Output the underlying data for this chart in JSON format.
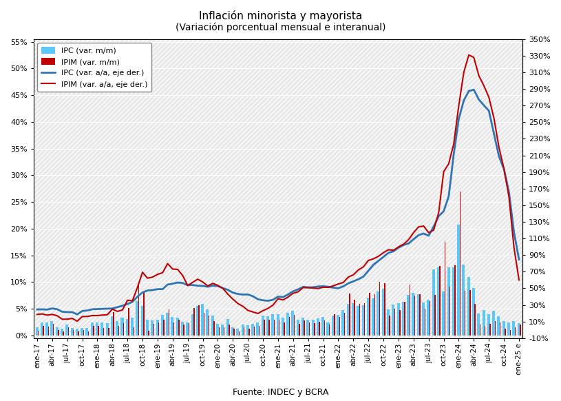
{
  "title": "Inflación minorista y mayorista",
  "subtitle": "(Variación porcentual mensual e interanual)",
  "source": "Fuente: INDEC y BCRA",
  "legend_labels": [
    "IPC (var. m/m)",
    "IPIM (var. m/m)",
    "IPC (var. a/a, eje der.)",
    "IPIM (var. a/a, eje der.)"
  ],
  "bar_color_ipc": "#5BC8F5",
  "bar_color_ipim": "#C00000",
  "line_color_ipc": "#2E75B6",
  "line_color_ipim": "#C00000",
  "months": [
    "ene-17",
    "feb-17",
    "mar-17",
    "abr-17",
    "may-17",
    "jun-17",
    "jul-17",
    "ago-17",
    "sep-17",
    "oct-17",
    "nov-17",
    "dic-17",
    "ene-18",
    "feb-18",
    "mar-18",
    "abr-18",
    "may-18",
    "jun-18",
    "jul-18",
    "ago-18",
    "sep-18",
    "oct-18",
    "nov-18",
    "dic-18",
    "ene-19",
    "feb-19",
    "mar-19",
    "abr-19",
    "may-19",
    "jun-19",
    "jul-19",
    "ago-19",
    "sep-19",
    "oct-19",
    "nov-19",
    "dic-19",
    "ene-20",
    "feb-20",
    "mar-20",
    "abr-20",
    "may-20",
    "jun-20",
    "jul-20",
    "ago-20",
    "sep-20",
    "oct-20",
    "nov-20",
    "dic-20",
    "ene-21",
    "feb-21",
    "mar-21",
    "abr-21",
    "may-21",
    "jun-21",
    "jul-21",
    "ago-21",
    "sep-21",
    "oct-21",
    "nov-21",
    "dic-21",
    "ene-22",
    "feb-22",
    "mar-22",
    "abr-22",
    "may-22",
    "jun-22",
    "jul-22",
    "ago-22",
    "sep-22",
    "oct-22",
    "nov-22",
    "dic-22",
    "ene-23",
    "feb-23",
    "mar-23",
    "abr-23",
    "may-23",
    "jun-23",
    "jul-23",
    "ago-23",
    "sep-23",
    "oct-23",
    "nov-23",
    "dic-23",
    "ene-24",
    "feb-24",
    "mar-24",
    "abr-24",
    "may-24",
    "jun-24",
    "jul-24",
    "ago-24",
    "sep-24",
    "oct-24",
    "nov-24",
    "dic-24",
    "ene-25 e"
  ],
  "ipc_mm": [
    0.016,
    0.024,
    0.024,
    0.027,
    0.015,
    0.013,
    0.021,
    0.014,
    0.013,
    0.014,
    0.014,
    0.024,
    0.025,
    0.025,
    0.023,
    0.036,
    0.027,
    0.033,
    0.031,
    0.034,
    0.064,
    0.055,
    0.03,
    0.028,
    0.029,
    0.038,
    0.043,
    0.035,
    0.034,
    0.026,
    0.025,
    0.04,
    0.056,
    0.059,
    0.049,
    0.037,
    0.022,
    0.02,
    0.031,
    0.015,
    0.013,
    0.021,
    0.019,
    0.022,
    0.024,
    0.037,
    0.036,
    0.04,
    0.04,
    0.034,
    0.042,
    0.046,
    0.03,
    0.033,
    0.03,
    0.03,
    0.032,
    0.035,
    0.025,
    0.037,
    0.039,
    0.048,
    0.059,
    0.061,
    0.056,
    0.057,
    0.071,
    0.07,
    0.083,
    0.088,
    0.049,
    0.058,
    0.06,
    0.063,
    0.076,
    0.08,
    0.077,
    0.062,
    0.067,
    0.124,
    0.128,
    0.083,
    0.128,
    0.128,
    0.207,
    0.133,
    0.11,
    0.089,
    0.041,
    0.047,
    0.04,
    0.046,
    0.036,
    0.027,
    0.024,
    0.027,
    0.023
  ],
  "ipim_mm": [
    0.009,
    0.018,
    0.017,
    0.022,
    0.01,
    0.007,
    0.016,
    0.01,
    0.008,
    0.01,
    0.008,
    0.018,
    0.018,
    0.014,
    0.014,
    0.044,
    0.018,
    0.023,
    0.052,
    0.016,
    0.099,
    0.082,
    0.009,
    0.022,
    0.025,
    0.03,
    0.049,
    0.024,
    0.03,
    0.021,
    0.023,
    0.051,
    0.057,
    0.042,
    0.037,
    0.027,
    0.015,
    0.015,
    0.02,
    0.013,
    0.008,
    0.016,
    0.013,
    0.017,
    0.018,
    0.03,
    0.03,
    0.03,
    0.03,
    0.025,
    0.035,
    0.038,
    0.022,
    0.028,
    0.025,
    0.023,
    0.026,
    0.028,
    0.02,
    0.04,
    0.035,
    0.043,
    0.078,
    0.067,
    0.059,
    0.06,
    0.08,
    0.077,
    0.1,
    0.098,
    0.037,
    0.05,
    0.048,
    0.063,
    0.095,
    0.075,
    0.077,
    0.05,
    0.065,
    0.076,
    0.13,
    0.175,
    0.091,
    0.131,
    0.27,
    0.084,
    0.085,
    0.059,
    0.02,
    0.018,
    0.022,
    0.027,
    0.025,
    0.013,
    0.01,
    0.015,
    0.02
  ],
  "ipc_aa": [
    0.246,
    0.247,
    0.244,
    0.258,
    0.248,
    0.218,
    0.214,
    0.213,
    0.186,
    0.227,
    0.233,
    0.248,
    0.25,
    0.253,
    0.255,
    0.257,
    0.273,
    0.29,
    0.311,
    0.337,
    0.4,
    0.45,
    0.474,
    0.479,
    0.49,
    0.49,
    0.545,
    0.556,
    0.57,
    0.564,
    0.538,
    0.54,
    0.531,
    0.529,
    0.519,
    0.533,
    0.527,
    0.503,
    0.481,
    0.448,
    0.432,
    0.425,
    0.426,
    0.404,
    0.368,
    0.356,
    0.35,
    0.362,
    0.4,
    0.394,
    0.426,
    0.464,
    0.487,
    0.518,
    0.511,
    0.513,
    0.522,
    0.525,
    0.518,
    0.508,
    0.501,
    0.524,
    0.56,
    0.584,
    0.609,
    0.641,
    0.712,
    0.783,
    0.831,
    0.879,
    0.927,
    0.946,
    0.989,
    1.022,
    1.04,
    1.091,
    1.141,
    1.16,
    1.133,
    1.244,
    1.369,
    1.428,
    1.609,
    2.116,
    2.54,
    2.761,
    2.876,
    2.891,
    2.773,
    2.703,
    2.638,
    2.365,
    2.09,
    1.936,
    1.66,
    1.174,
    0.847
  ],
  "ipim_aa": [
    0.185,
    0.192,
    0.177,
    0.186,
    0.17,
    0.128,
    0.128,
    0.138,
    0.104,
    0.16,
    0.161,
    0.172,
    0.172,
    0.178,
    0.182,
    0.249,
    0.222,
    0.239,
    0.356,
    0.35,
    0.513,
    0.694,
    0.622,
    0.635,
    0.668,
    0.688,
    0.797,
    0.732,
    0.728,
    0.654,
    0.534,
    0.572,
    0.61,
    0.576,
    0.528,
    0.56,
    0.535,
    0.499,
    0.43,
    0.37,
    0.317,
    0.283,
    0.234,
    0.215,
    0.197,
    0.231,
    0.259,
    0.298,
    0.375,
    0.36,
    0.395,
    0.44,
    0.458,
    0.509,
    0.508,
    0.503,
    0.498,
    0.513,
    0.512,
    0.53,
    0.552,
    0.571,
    0.636,
    0.662,
    0.721,
    0.759,
    0.836,
    0.855,
    0.886,
    0.929,
    0.965,
    0.958,
    0.999,
    1.031,
    1.086,
    1.17,
    1.24,
    1.25,
    1.17,
    1.2,
    1.412,
    1.905,
    2.0,
    2.24,
    2.7,
    3.1,
    3.31,
    3.28,
    3.06,
    2.94,
    2.8,
    2.55,
    2.2,
    1.94,
    1.6,
    0.99,
    0.6
  ],
  "xtick_labels": [
    "ene-17",
    "abr-17",
    "jul-17",
    "oct-17",
    "ene-18",
    "abr-18",
    "jul-18",
    "oct-18",
    "ene-19",
    "abr-19",
    "jul-19",
    "oct-19",
    "ene-20",
    "abr-20",
    "jul-20",
    "oct-20",
    "ene-21",
    "abr-21",
    "jul-21",
    "oct-21",
    "ene-22",
    "abr-22",
    "jul-22",
    "oct-22",
    "ene-23",
    "abr-23",
    "jul-23",
    "oct-23",
    "ene-24",
    "abr-24",
    "jul-24",
    "oct-24",
    "ene-25 e"
  ],
  "xtick_positions": [
    0,
    3,
    6,
    9,
    12,
    15,
    18,
    21,
    24,
    27,
    30,
    33,
    36,
    39,
    42,
    45,
    48,
    51,
    54,
    57,
    60,
    63,
    66,
    69,
    72,
    75,
    78,
    81,
    84,
    87,
    90,
    93,
    96
  ]
}
